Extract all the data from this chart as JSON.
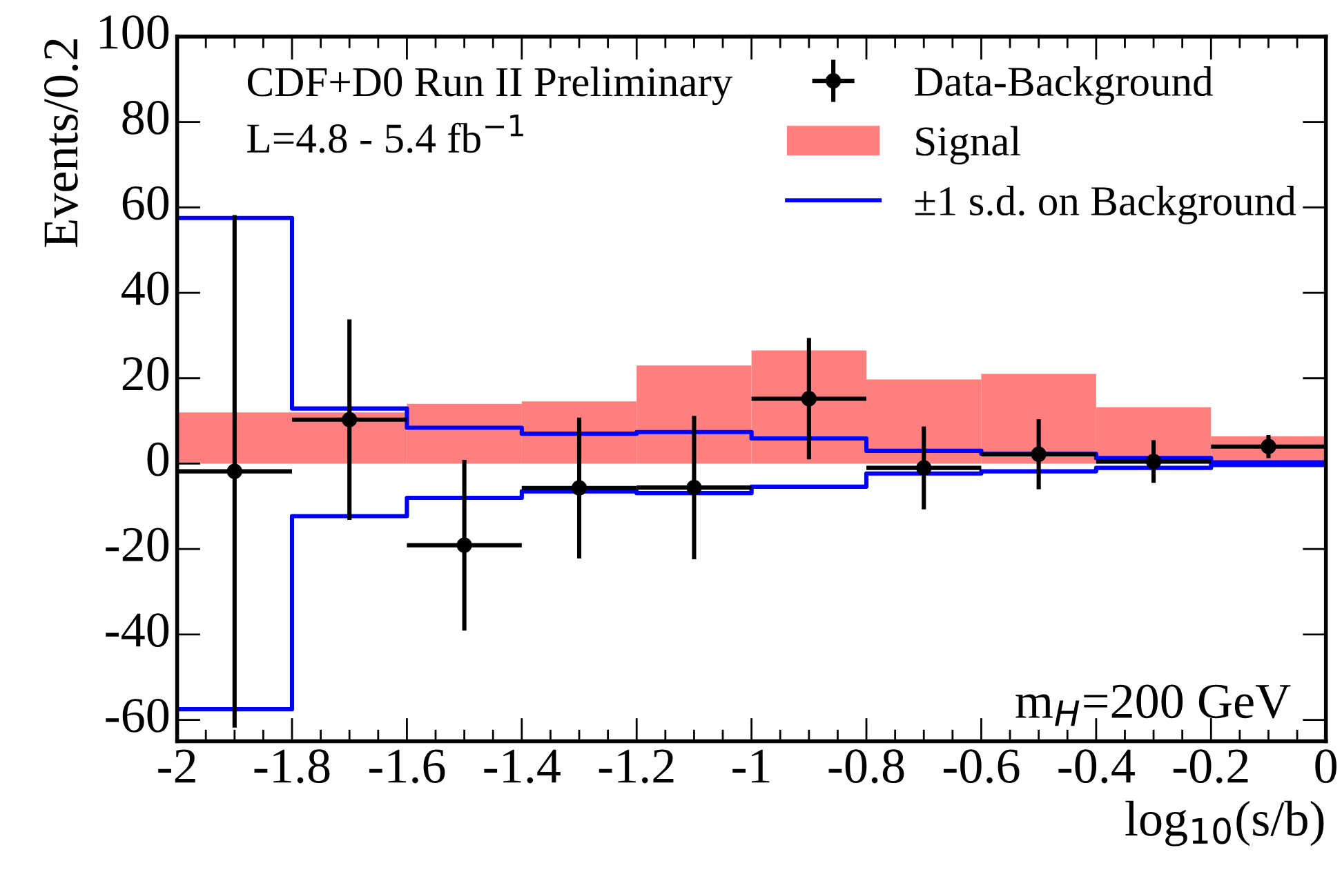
{
  "chart_data": {
    "type": "histogram",
    "xlabel": "log$_{10}$(s/b)",
    "ylabel": "Events/0.2",
    "annotations": [
      "CDF+D0 Run II Preliminary",
      "L=4.8 - 5.4 fb$^{−1}$",
      "m$_{H}$=200 GeV"
    ],
    "bins": [
      -2,
      -1.8,
      -1.6,
      -1.4,
      -1.2,
      -1,
      -0.8,
      -0.6,
      -0.4,
      -0.2,
      0
    ],
    "series": [
      {
        "name": "Signal",
        "color": "#ff7f7f",
        "values": [
          12,
          12,
          14,
          14.6,
          23,
          26.5,
          19.7,
          21,
          13.2,
          6.4
        ]
      },
      {
        "name": "±1 s.d. on Background",
        "type": "step",
        "color": "#0000ff",
        "x": [
          -2,
          -1.8,
          -1.6,
          -1.4,
          -1.2,
          -1,
          -0.8,
          -0.6,
          -0.4,
          -0.2,
          0
        ],
        "values": [
          57.5,
          12.9,
          8.4,
          7,
          7.4,
          5.9,
          3,
          2.3,
          1.3,
          0.3,
          0.3
        ]
      },
      {
        "type": "step",
        "color": "#0000ff",
        "x": [
          -2,
          -1.8,
          -1.6,
          -1.4,
          -1.2,
          -1,
          -0.8,
          -0.6,
          -0.4,
          -0.2,
          0
        ],
        "values": [
          -57.5,
          -12.3,
          -8,
          -6.5,
          -6.9,
          -5.4,
          -2.3,
          -1.8,
          -1,
          -0.3,
          -0.3
        ]
      },
      {
        "name": "Data-Background",
        "type": "scatter",
        "color": "#000000",
        "marker": "circle",
        "x": [
          -1.9,
          -1.7,
          -1.5,
          -1.3,
          -1.1,
          -0.9,
          -0.7,
          -0.5,
          -0.3,
          -0.1
        ],
        "values": [
          -1.8,
          10.3,
          -19.1,
          -5.7,
          -5.6,
          15.2,
          -1,
          2.2,
          0.5,
          4
        ],
        "errors": [
          60,
          23.5,
          20,
          16.5,
          16.8,
          14.2,
          9.7,
          8.2,
          5,
          2.7
        ],
        "xerrors": [
          0.1,
          0.1,
          0.1,
          0.1,
          0.1,
          0.1,
          0.1,
          0.1,
          0.1,
          0.1
        ]
      }
    ],
    "xlim": [
      -2,
      0
    ],
    "ylim": [
      -65,
      100
    ],
    "xticks": [
      -2,
      -1.8,
      -1.6,
      -1.4,
      -1.2,
      -1,
      -0.8,
      -0.6,
      -0.4,
      -0.2,
      0
    ],
    "yticks": [
      -60,
      -40,
      -20,
      0,
      20,
      40,
      60,
      80,
      100
    ],
    "grid": false,
    "legend": "top right"
  }
}
